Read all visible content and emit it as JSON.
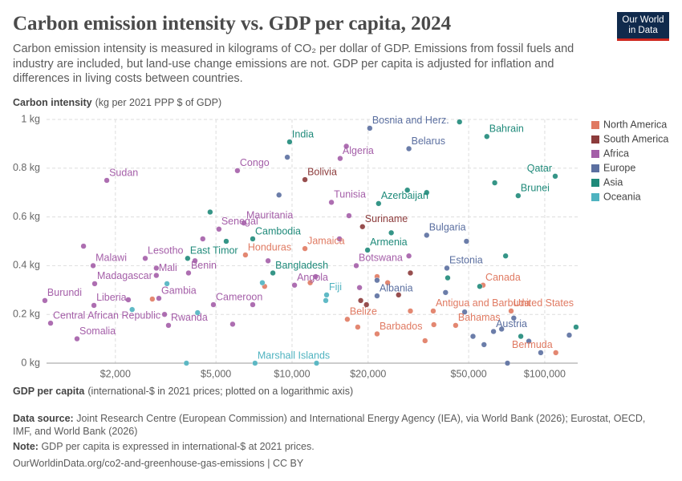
{
  "header": {
    "title": "Carbon emission intensity vs. GDP per capita, 2024",
    "subtitle": "Carbon emission intensity is measured in kilograms of CO₂ per dollar of GDP. Emissions from fossil fuels and industry are included, but land-use change emissions are not. GDP per capita is adjusted for inflation and differences in living costs between countries.",
    "logo": [
      "Our World",
      "in Data"
    ]
  },
  "chart_data": {
    "type": "scatter",
    "y_axis_label": {
      "title": "Carbon intensity",
      "unit": "(kg per 2021 PPP $ of GDP)"
    },
    "x_axis_label": {
      "title": "GDP per capita",
      "unit": "(international-$ in 2021 prices; plotted on a logarithmic axis)"
    },
    "xscale": "log",
    "grid": true,
    "legend": "right",
    "xlim": [
      1000,
      135000
    ],
    "ylim": [
      0,
      1
    ],
    "xticks": [
      {
        "value": 2000,
        "label": "$2,000"
      },
      {
        "value": 5000,
        "label": "$5,000"
      },
      {
        "value": 10000,
        "label": "$10,000"
      },
      {
        "value": 20000,
        "label": "$20,000"
      },
      {
        "value": 50000,
        "label": "$50,000"
      },
      {
        "value": 100000,
        "label": "$100,000"
      }
    ],
    "yticks": [
      {
        "value": 0,
        "label": "0 kg"
      },
      {
        "value": 0.2,
        "label": "0.2 kg"
      },
      {
        "value": 0.4,
        "label": "0.4 kg"
      },
      {
        "value": 0.6,
        "label": "0.6 kg"
      },
      {
        "value": 0.8,
        "label": "0.8 kg"
      },
      {
        "value": 1,
        "label": "1 kg"
      }
    ],
    "series": [
      {
        "name": "North America",
        "color": "#e07a62",
        "points": [
          {
            "x": 6540,
            "y": 0.444,
            "label": "Honduras"
          },
          {
            "x": 11250,
            "y": 0.47,
            "label": "Jamaica"
          },
          {
            "x": 16550,
            "y": 0.18,
            "label": "Belize"
          },
          {
            "x": 21700,
            "y": 0.12,
            "label": "Barbados"
          },
          {
            "x": 36200,
            "y": 0.214,
            "label": "Antigua and Barbuda"
          },
          {
            "x": 44400,
            "y": 0.155,
            "label": "Bahamas"
          },
          {
            "x": 57000,
            "y": 0.32,
            "label": "Canada"
          },
          {
            "x": 73600,
            "y": 0.214,
            "label": "United States"
          },
          {
            "x": 110600,
            "y": 0.043,
            "label": "Bermuda"
          },
          {
            "x": 7790,
            "y": 0.315
          },
          {
            "x": 11800,
            "y": 0.33
          },
          {
            "x": 21700,
            "y": 0.355
          },
          {
            "x": 23900,
            "y": 0.33
          },
          {
            "x": 29400,
            "y": 0.214
          },
          {
            "x": 36400,
            "y": 0.158
          },
          {
            "x": 33600,
            "y": 0.092
          },
          {
            "x": 2800,
            "y": 0.263
          },
          {
            "x": 18200,
            "y": 0.148
          }
        ]
      },
      {
        "name": "South America",
        "color": "#8c3b3b",
        "points": [
          {
            "x": 11250,
            "y": 0.753,
            "label": "Bolivia"
          },
          {
            "x": 19000,
            "y": 0.56,
            "label": "Suriname"
          },
          {
            "x": 18700,
            "y": 0.257
          },
          {
            "x": 26400,
            "y": 0.28
          },
          {
            "x": 19700,
            "y": 0.24
          },
          {
            "x": 29400,
            "y": 0.37
          }
        ]
      },
      {
        "name": "Africa",
        "color": "#a45ea8",
        "points": [
          {
            "x": 1849,
            "y": 0.75,
            "label": "Sudan"
          },
          {
            "x": 1052,
            "y": 0.257,
            "label": "Burundi"
          },
          {
            "x": 1108,
            "y": 0.164,
            "label": "Central African Republic"
          },
          {
            "x": 1410,
            "y": 0.1,
            "label": "Somalia"
          },
          {
            "x": 1633,
            "y": 0.4,
            "label": "Malawi"
          },
          {
            "x": 1645,
            "y": 0.237,
            "label": "Liberia"
          },
          {
            "x": 1656,
            "y": 0.326,
            "label": "Madagascar"
          },
          {
            "x": 2625,
            "y": 0.43,
            "label": "Lesotho"
          },
          {
            "x": 2904,
            "y": 0.36,
            "label": "Mali"
          },
          {
            "x": 2972,
            "y": 0.266,
            "label": "Gambia"
          },
          {
            "x": 3894,
            "y": 0.37,
            "label": "Benin"
          },
          {
            "x": 3244,
            "y": 0.155,
            "label": "Rwanda"
          },
          {
            "x": 5137,
            "y": 0.55,
            "label": "Senegal"
          },
          {
            "x": 4885,
            "y": 0.24,
            "label": "Cameroon"
          },
          {
            "x": 6080,
            "y": 0.79,
            "label": "Congo"
          },
          {
            "x": 6450,
            "y": 0.575,
            "label": "Mauritania"
          },
          {
            "x": 10230,
            "y": 0.32,
            "label": "Angola"
          },
          {
            "x": 15500,
            "y": 0.84,
            "label": "Algeria"
          },
          {
            "x": 14320,
            "y": 0.66,
            "label": "Tunisia"
          },
          {
            "x": 17950,
            "y": 0.4,
            "label": "Botswana"
          },
          {
            "x": 1496,
            "y": 0.48
          },
          {
            "x": 2250,
            "y": 0.26
          },
          {
            "x": 2904,
            "y": 0.39
          },
          {
            "x": 3130,
            "y": 0.2
          },
          {
            "x": 4435,
            "y": 0.51
          },
          {
            "x": 4130,
            "y": 0.42
          },
          {
            "x": 5820,
            "y": 0.16
          },
          {
            "x": 8040,
            "y": 0.42
          },
          {
            "x": 6990,
            "y": 0.24
          },
          {
            "x": 12400,
            "y": 0.355
          },
          {
            "x": 16400,
            "y": 0.89
          },
          {
            "x": 16800,
            "y": 0.605
          },
          {
            "x": 18500,
            "y": 0.31
          },
          {
            "x": 29000,
            "y": 0.44
          },
          {
            "x": 15400,
            "y": 0.51
          }
        ]
      },
      {
        "name": "Europe",
        "color": "#5b6fa0",
        "points": [
          {
            "x": 20300,
            "y": 0.964,
            "label": "Bosnia and Herz."
          },
          {
            "x": 21700,
            "y": 0.276,
            "label": "Albania"
          },
          {
            "x": 29000,
            "y": 0.88,
            "label": "Belarus"
          },
          {
            "x": 34100,
            "y": 0.525,
            "label": "Bulgaria"
          },
          {
            "x": 41000,
            "y": 0.39,
            "label": "Estonia"
          },
          {
            "x": 62700,
            "y": 0.13,
            "label": "Austria"
          },
          {
            "x": 9580,
            "y": 0.845
          },
          {
            "x": 8880,
            "y": 0.69
          },
          {
            "x": 21700,
            "y": 0.34
          },
          {
            "x": 49000,
            "y": 0.5
          },
          {
            "x": 40500,
            "y": 0.29
          },
          {
            "x": 48200,
            "y": 0.21
          },
          {
            "x": 57500,
            "y": 0.076
          },
          {
            "x": 67500,
            "y": 0.14
          },
          {
            "x": 75400,
            "y": 0.185
          },
          {
            "x": 86500,
            "y": 0.09
          },
          {
            "x": 96400,
            "y": 0.043
          },
          {
            "x": 125000,
            "y": 0.115
          },
          {
            "x": 71200,
            "y": 0
          },
          {
            "x": 52000,
            "y": 0.11
          }
        ]
      },
      {
        "name": "Asia",
        "color": "#1f8a7a",
        "points": [
          {
            "x": 3863,
            "y": 0.43,
            "label": "East Timor"
          },
          {
            "x": 6990,
            "y": 0.51,
            "label": "Cambodia"
          },
          {
            "x": 8400,
            "y": 0.37,
            "label": "Bangladesh"
          },
          {
            "x": 9780,
            "y": 0.908,
            "label": "India"
          },
          {
            "x": 22000,
            "y": 0.655,
            "label": "Azerbaijan"
          },
          {
            "x": 19900,
            "y": 0.464,
            "label": "Armenia"
          },
          {
            "x": 59000,
            "y": 0.93,
            "label": "Bahrain"
          },
          {
            "x": 110000,
            "y": 0.767,
            "label": "Qatar"
          },
          {
            "x": 78500,
            "y": 0.687,
            "label": "Brunei"
          },
          {
            "x": 4740,
            "y": 0.62
          },
          {
            "x": 5490,
            "y": 0.5
          },
          {
            "x": 46000,
            "y": 0.99
          },
          {
            "x": 63400,
            "y": 0.74
          },
          {
            "x": 34100,
            "y": 0.7
          },
          {
            "x": 28600,
            "y": 0.71
          },
          {
            "x": 24700,
            "y": 0.535
          },
          {
            "x": 41300,
            "y": 0.35
          },
          {
            "x": 70000,
            "y": 0.44
          },
          {
            "x": 55300,
            "y": 0.315
          },
          {
            "x": 133000,
            "y": 0.148
          },
          {
            "x": 80400,
            "y": 0.11
          }
        ]
      },
      {
        "name": "Oceania",
        "color": "#4fb3c0",
        "points": [
          {
            "x": 7137,
            "y": 0,
            "label": "Marshall Islands"
          },
          {
            "x": 13700,
            "y": 0.28,
            "label": "Fiji"
          },
          {
            "x": 2330,
            "y": 0.22
          },
          {
            "x": 3200,
            "y": 0.326
          },
          {
            "x": 4230,
            "y": 0.207
          },
          {
            "x": 7630,
            "y": 0.33
          },
          {
            "x": 3820,
            "y": 0
          },
          {
            "x": 13600,
            "y": 0.257
          },
          {
            "x": 12500,
            "y": 0
          }
        ]
      }
    ]
  },
  "footer": {
    "source_label": "Data source:",
    "source": "Joint Research Centre (European Commission) and International Energy Agency (IEA), via World Bank (2026); Eurostat, OECD, IMF, and World Bank (2026)",
    "note_label": "Note:",
    "note": "GDP per capita is expressed in international-$ at 2021 prices.",
    "url": "OurWorldinData.org/co2-and-greenhouse-gas-emissions | CC BY"
  }
}
